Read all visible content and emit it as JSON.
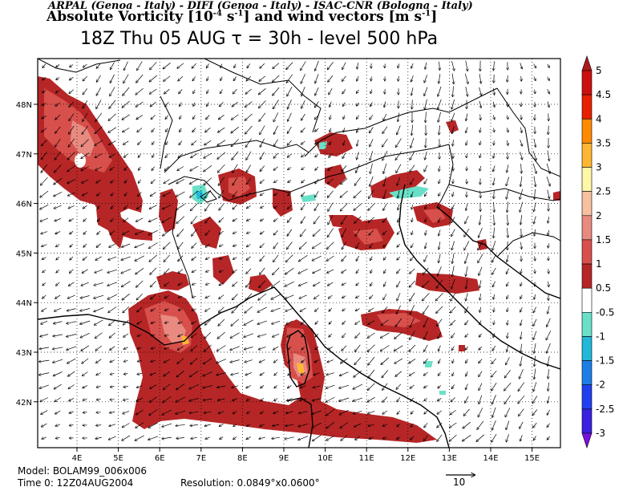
{
  "header": {
    "credits": "ARPAL (Genoa - Italy)  -  DIFI (Genoa - Italy)  -  ISAC-CNR (Bologna - Italy)",
    "title_prefix": "Absolute Vorticity [10",
    "title_exp1": "-4",
    "title_mid": " s",
    "title_exp2": "-1",
    "title_mid2": "] and wind vectors [m s",
    "title_exp3": "-1",
    "title_suffix": "]",
    "subtitle": "18Z Thu 05 AUG  τ = 30h  -  level 500 hPa"
  },
  "axes": {
    "lon_labels": [
      "4E",
      "5E",
      "6E",
      "7E",
      "8E",
      "9E",
      "10E",
      "11E",
      "12E",
      "13E",
      "14E",
      "15E"
    ],
    "lat_labels": [
      "48N",
      "47N",
      "46N",
      "45N",
      "44N",
      "43N",
      "42N"
    ]
  },
  "colorbar": {
    "labels": [
      "5",
      "4.5",
      "4",
      "3.5",
      "3",
      "2.5",
      "2",
      "1.5",
      "1",
      "0.5",
      "-0.5",
      "-1",
      "-1.5",
      "-2",
      "-2.5",
      "-3"
    ],
    "colors": [
      "#b01a1a",
      "#cc1010",
      "#e82000",
      "#ff8a00",
      "#ffb733",
      "#fff6a8",
      "#f7c0a0",
      "#e88a80",
      "#d8504c",
      "#b62626",
      "#ffffff",
      "#6ae0c8",
      "#22b8d8",
      "#1e7ee8",
      "#2040f0",
      "#3a20e0",
      "#7a10e0"
    ]
  },
  "footer": {
    "model": "Model: BOLAM99_006x006",
    "time": "Time 0: 12Z04AUG2004",
    "resolution": "Resolution: 0.0849°x0.0600°",
    "ref_vector": "10"
  }
}
